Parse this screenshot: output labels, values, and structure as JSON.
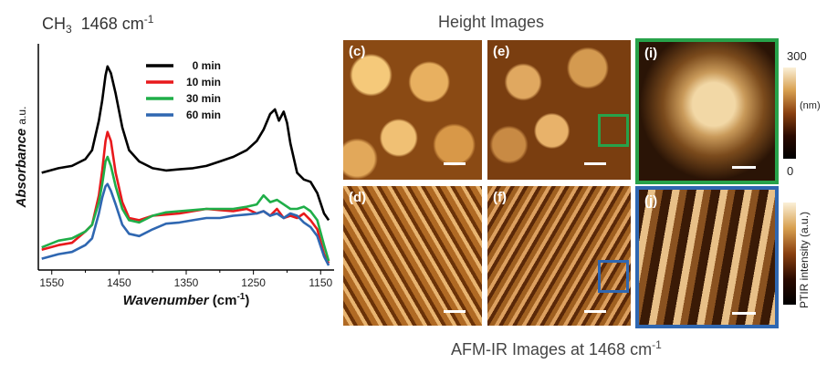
{
  "figure_title": {
    "prefix": "CH",
    "subscript": "3",
    "value": "1468 cm",
    "superscript": "-1"
  },
  "sections": {
    "height_title": "Height Images",
    "afmir_title": "AFM-IR Images at 1468 cm",
    "afmir_superscript": "-1"
  },
  "panels": [
    {
      "label": "(c)"
    },
    {
      "label": "(d)"
    },
    {
      "label": "(e)"
    },
    {
      "label": "(f)"
    },
    {
      "label": "(i)"
    },
    {
      "label": "(j)"
    }
  ],
  "colorbars": {
    "height": {
      "max_label": "300",
      "min_label": "0",
      "unit_label": "(nm)"
    },
    "ir": {
      "label": "PTIR intensity (a.u.)"
    }
  },
  "colors": {
    "green_frame": "#27a24a",
    "blue_frame": "#2f67b1"
  },
  "chart_data": {
    "type": "line",
    "xlabel": "Wavenumber (cm-1)",
    "ylabel_italic": "Absorbance",
    "ylabel_unit": "a.u.",
    "x_reversed": true,
    "xlim": [
      1570,
      1130
    ],
    "ylim": [
      0,
      1
    ],
    "xticks": [
      1550,
      1450,
      1350,
      1250,
      1150
    ],
    "series": [
      {
        "name": "0 min",
        "color": "#000000",
        "x": [
          1565,
          1540,
          1520,
          1500,
          1490,
          1480,
          1475,
          1470,
          1467,
          1462,
          1455,
          1445,
          1435,
          1420,
          1400,
          1380,
          1360,
          1340,
          1320,
          1300,
          1280,
          1260,
          1245,
          1235,
          1225,
          1218,
          1212,
          1205,
          1200,
          1195,
          1185,
          1175,
          1165,
          1155,
          1145,
          1138
        ],
        "y": [
          0.43,
          0.45,
          0.46,
          0.49,
          0.53,
          0.66,
          0.75,
          0.86,
          0.9,
          0.87,
          0.78,
          0.63,
          0.53,
          0.48,
          0.45,
          0.44,
          0.445,
          0.45,
          0.46,
          0.48,
          0.5,
          0.53,
          0.57,
          0.62,
          0.69,
          0.71,
          0.66,
          0.7,
          0.65,
          0.56,
          0.43,
          0.4,
          0.39,
          0.34,
          0.25,
          0.22
        ]
      },
      {
        "name": "10 min",
        "color": "#e8191c",
        "x": [
          1565,
          1540,
          1520,
          1500,
          1490,
          1480,
          1475,
          1470,
          1467,
          1462,
          1455,
          1445,
          1435,
          1420,
          1400,
          1380,
          1360,
          1340,
          1320,
          1300,
          1280,
          1260,
          1245,
          1235,
          1225,
          1215,
          1205,
          1195,
          1185,
          1175,
          1165,
          1155,
          1145,
          1138
        ],
        "y": [
          0.09,
          0.11,
          0.12,
          0.17,
          0.2,
          0.33,
          0.44,
          0.57,
          0.61,
          0.57,
          0.43,
          0.3,
          0.23,
          0.22,
          0.24,
          0.245,
          0.25,
          0.26,
          0.27,
          0.265,
          0.26,
          0.27,
          0.25,
          0.26,
          0.24,
          0.27,
          0.23,
          0.24,
          0.23,
          0.25,
          0.22,
          0.18,
          0.07,
          0.03
        ]
      },
      {
        "name": "30 min",
        "color": "#1fae48",
        "x": [
          1565,
          1540,
          1520,
          1500,
          1490,
          1480,
          1475,
          1470,
          1467,
          1462,
          1455,
          1445,
          1435,
          1420,
          1400,
          1380,
          1360,
          1340,
          1320,
          1300,
          1280,
          1260,
          1245,
          1235,
          1225,
          1215,
          1205,
          1195,
          1185,
          1175,
          1165,
          1155,
          1145,
          1138
        ],
        "y": [
          0.1,
          0.13,
          0.14,
          0.17,
          0.2,
          0.3,
          0.38,
          0.48,
          0.5,
          0.46,
          0.37,
          0.27,
          0.22,
          0.21,
          0.24,
          0.255,
          0.26,
          0.265,
          0.27,
          0.27,
          0.27,
          0.28,
          0.29,
          0.33,
          0.3,
          0.31,
          0.29,
          0.27,
          0.27,
          0.28,
          0.26,
          0.22,
          0.11,
          0.04
        ]
      },
      {
        "name": "60 min",
        "color": "#2f67b1",
        "x": [
          1565,
          1540,
          1520,
          1500,
          1490,
          1480,
          1475,
          1470,
          1467,
          1462,
          1455,
          1445,
          1435,
          1420,
          1400,
          1380,
          1360,
          1340,
          1320,
          1300,
          1280,
          1260,
          1245,
          1235,
          1225,
          1215,
          1205,
          1195,
          1185,
          1175,
          1165,
          1155,
          1145,
          1138
        ],
        "y": [
          0.05,
          0.07,
          0.08,
          0.11,
          0.14,
          0.25,
          0.32,
          0.37,
          0.38,
          0.35,
          0.29,
          0.2,
          0.16,
          0.15,
          0.18,
          0.205,
          0.21,
          0.22,
          0.23,
          0.23,
          0.24,
          0.245,
          0.25,
          0.26,
          0.24,
          0.25,
          0.23,
          0.25,
          0.24,
          0.21,
          0.19,
          0.15,
          0.06,
          0.02
        ]
      }
    ]
  }
}
